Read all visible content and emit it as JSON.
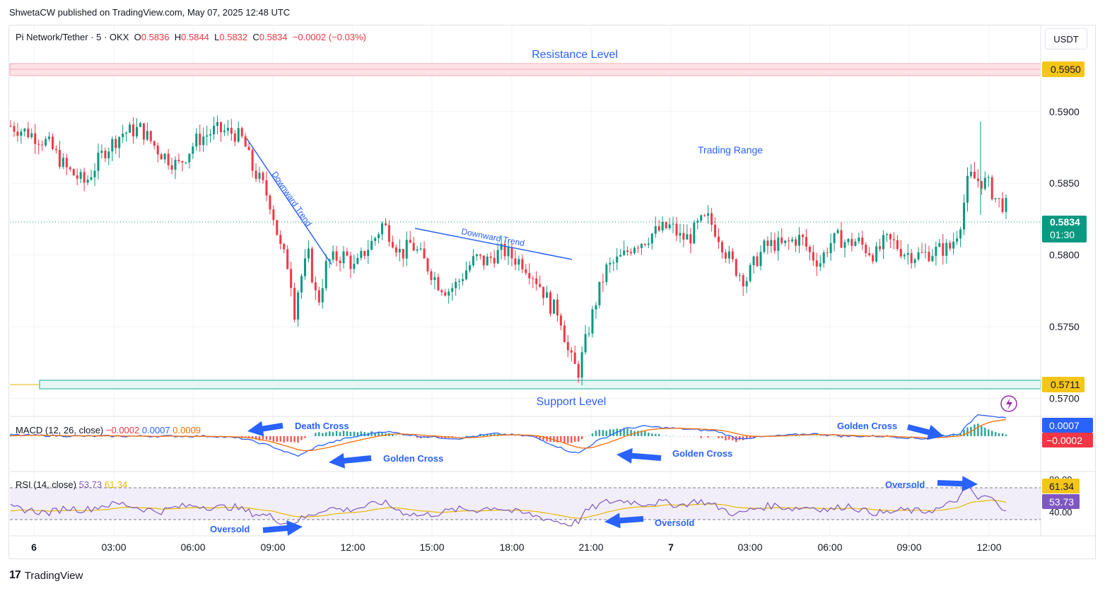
{
  "publisher": "ShwetaCW published on TradingView.com, May 07, 2025 12:48 UTC",
  "symbol": {
    "name": "Pi Network/Tether · 5 · OKX",
    "o_label": "O",
    "o": "0.5836",
    "h_label": "H",
    "h": "0.5844",
    "l_label": "L",
    "l": "0.5832",
    "c_label": "C",
    "c": "0.5834",
    "change": "−0.0002 (−0.03%)"
  },
  "currency": "USDT",
  "annotations": {
    "resistance": "Resistance Level",
    "support": "Support Level",
    "trading_range": "Trading Range",
    "downtrend1": "Downward Trend",
    "downtrend2": "Downward Trend",
    "death_cross": "Death Cross",
    "golden_cross_1": "Golden Cross",
    "golden_cross_2": "Golden Cross",
    "golden_cross_3": "Golden Cross",
    "oversold_1": "Oversold",
    "oversold_2": "Oversold",
    "oversold_3": "Oversold"
  },
  "price_badges": {
    "resistance": "0.5950",
    "last": "0.5834",
    "countdown": "01:30",
    "support": "0.5711",
    "macd_line": "0.0007",
    "macd_hist": "−0.0002",
    "rsi_ma": "61.34",
    "rsi": "53.73"
  },
  "macd_legend": {
    "name": "MACD (12, 26, close)",
    "hist": "−0.0002",
    "macd": "0.0007",
    "signal": "0.0009"
  },
  "rsi_legend": {
    "name": "RSI (14, close)",
    "rsi": "53.73",
    "ma": "61.34"
  },
  "rsi_axis": {
    "top": "80.00",
    "bottom": "40.00"
  },
  "footer": "TradingView",
  "colors": {
    "up": "#089981",
    "down": "#f23645",
    "macd": "#2962ff",
    "signal": "#ff6d00",
    "rsi": "#7e57c2",
    "rsi_ma": "#e8b800",
    "annotation": "#2962ff",
    "resistance": "#f7a8b8",
    "support": "#5ec8b8"
  },
  "chart_data": {
    "type": "candlestick",
    "y_ticks": [
      "0.5700",
      "0.5750",
      "0.5800",
      "0.5850",
      "0.5900"
    ],
    "x_ticks": [
      "6",
      "03:00",
      "06:00",
      "09:00",
      "12:00",
      "15:00",
      "18:00",
      "21:00",
      "7",
      "03:00",
      "06:00",
      "09:00",
      "12:00"
    ],
    "ylim": [
      0.5689,
      0.596
    ],
    "resistance": 0.595,
    "support": 0.5711,
    "last_price": 0.5834,
    "price_path": [
      [
        0,
        0.589
      ],
      [
        2,
        0.5885
      ],
      [
        4,
        0.5878
      ],
      [
        6,
        0.586
      ],
      [
        8,
        0.585
      ],
      [
        10,
        0.5872
      ],
      [
        12,
        0.5885
      ],
      [
        14,
        0.5888
      ],
      [
        16,
        0.5872
      ],
      [
        18,
        0.5862
      ],
      [
        20,
        0.588
      ],
      [
        22,
        0.5887
      ],
      [
        24,
        0.5885
      ],
      [
        25,
        0.588
      ],
      [
        26,
        0.586
      ],
      [
        27,
        0.585
      ],
      [
        28,
        0.5835
      ],
      [
        29,
        0.5805
      ],
      [
        30,
        0.579
      ],
      [
        30.5,
        0.576
      ],
      [
        31,
        0.578
      ],
      [
        32,
        0.58
      ],
      [
        33,
        0.5765
      ],
      [
        34,
        0.5795
      ],
      [
        35,
        0.5798
      ],
      [
        36,
        0.58
      ],
      [
        37,
        0.579
      ],
      [
        38,
        0.5802
      ],
      [
        39,
        0.581
      ],
      [
        40,
        0.5822
      ],
      [
        41,
        0.5812
      ],
      [
        42,
        0.58
      ],
      [
        43,
        0.5808
      ],
      [
        44,
        0.58
      ],
      [
        45,
        0.579
      ],
      [
        46,
        0.578
      ],
      [
        47,
        0.5775
      ],
      [
        48,
        0.578
      ],
      [
        49,
        0.579
      ],
      [
        50,
        0.5798
      ],
      [
        51,
        0.5795
      ],
      [
        52,
        0.58
      ],
      [
        53,
        0.5803
      ],
      [
        54,
        0.5798
      ],
      [
        55,
        0.5795
      ],
      [
        56,
        0.5788
      ],
      [
        57,
        0.5778
      ],
      [
        58,
        0.5765
      ],
      [
        59,
        0.576
      ],
      [
        60,
        0.573
      ],
      [
        61,
        0.5718
      ],
      [
        62,
        0.5745
      ],
      [
        63,
        0.577
      ],
      [
        64,
        0.579
      ],
      [
        65,
        0.5795
      ],
      [
        66,
        0.58
      ],
      [
        67,
        0.5808
      ],
      [
        68,
        0.581
      ],
      [
        69,
        0.5815
      ],
      [
        70,
        0.5818
      ],
      [
        71,
        0.582
      ],
      [
        72,
        0.5812
      ],
      [
        73,
        0.5812
      ],
      [
        74,
        0.5822
      ],
      [
        75,
        0.5825
      ],
      [
        76,
        0.5815
      ],
      [
        77,
        0.58
      ],
      [
        78,
        0.579
      ],
      [
        79,
        0.5782
      ],
      [
        80,
        0.5795
      ],
      [
        81,
        0.5805
      ],
      [
        82,
        0.5808
      ],
      [
        83,
        0.5806
      ],
      [
        84,
        0.581
      ],
      [
        85,
        0.5812
      ],
      [
        86,
        0.58
      ],
      [
        87,
        0.5795
      ],
      [
        88,
        0.5808
      ],
      [
        89,
        0.5812
      ],
      [
        90,
        0.5808
      ],
      [
        91,
        0.581
      ],
      [
        92,
        0.5804
      ],
      [
        93,
        0.58
      ],
      [
        94,
        0.581
      ],
      [
        95,
        0.5808
      ],
      [
        96,
        0.5802
      ],
      [
        97,
        0.58
      ],
      [
        98,
        0.58
      ],
      [
        99,
        0.5802
      ],
      [
        100,
        0.5804
      ],
      [
        101,
        0.5805
      ],
      [
        102,
        0.582
      ],
      [
        103,
        0.5855
      ],
      [
        104,
        0.5852
      ],
      [
        105,
        0.585
      ],
      [
        106,
        0.5838
      ],
      [
        107,
        0.5834
      ]
    ],
    "macd_path": [
      [
        0,
        5e-05
      ],
      [
        8,
        0.0
      ],
      [
        16,
        0.0
      ],
      [
        22,
        0.0
      ],
      [
        25,
        -0.0001
      ],
      [
        28,
        -0.0004
      ],
      [
        30,
        -0.0007
      ],
      [
        31,
        -0.0008
      ],
      [
        33,
        -0.0004
      ],
      [
        36,
        -0.0001
      ],
      [
        40,
        0.0002
      ],
      [
        44,
        0.0
      ],
      [
        48,
        -0.0001
      ],
      [
        52,
        0.0001
      ],
      [
        56,
        0.0
      ],
      [
        58,
        -0.0003
      ],
      [
        60,
        -0.0006
      ],
      [
        61,
        -0.0007
      ],
      [
        63,
        -0.0002
      ],
      [
        66,
        0.0003
      ],
      [
        68,
        0.0004
      ],
      [
        72,
        0.0003
      ],
      [
        76,
        0.0002
      ],
      [
        78,
        -0.0001
      ],
      [
        82,
        0.0
      ],
      [
        86,
        0.0001
      ],
      [
        90,
        0.0
      ],
      [
        94,
        0.0
      ],
      [
        98,
        -0.0001
      ],
      [
        100,
        0.0
      ],
      [
        102,
        0.0001
      ],
      [
        103,
        0.0005
      ],
      [
        104,
        0.0009
      ],
      [
        106,
        0.0008
      ],
      [
        107,
        0.0007
      ]
    ],
    "rsi_path": [
      [
        0,
        55
      ],
      [
        2,
        52
      ],
      [
        4,
        48
      ],
      [
        6,
        55
      ],
      [
        8,
        52
      ],
      [
        10,
        58
      ],
      [
        12,
        60
      ],
      [
        14,
        54
      ],
      [
        16,
        50
      ],
      [
        18,
        56
      ],
      [
        20,
        58
      ],
      [
        22,
        55
      ],
      [
        24,
        56
      ],
      [
        26,
        48
      ],
      [
        28,
        44
      ],
      [
        29,
        38
      ],
      [
        30,
        34
      ],
      [
        31,
        40
      ],
      [
        32,
        44
      ],
      [
        34,
        55
      ],
      [
        36,
        52
      ],
      [
        38,
        56
      ],
      [
        40,
        62
      ],
      [
        42,
        50
      ],
      [
        44,
        45
      ],
      [
        46,
        48
      ],
      [
        48,
        53
      ],
      [
        50,
        52
      ],
      [
        52,
        56
      ],
      [
        54,
        50
      ],
      [
        56,
        46
      ],
      [
        58,
        40
      ],
      [
        60,
        34
      ],
      [
        61,
        38
      ],
      [
        62,
        52
      ],
      [
        64,
        62
      ],
      [
        66,
        64
      ],
      [
        68,
        60
      ],
      [
        70,
        62
      ],
      [
        72,
        58
      ],
      [
        74,
        64
      ],
      [
        76,
        56
      ],
      [
        78,
        46
      ],
      [
        80,
        54
      ],
      [
        82,
        58
      ],
      [
        84,
        54
      ],
      [
        86,
        56
      ],
      [
        88,
        52
      ],
      [
        90,
        58
      ],
      [
        92,
        50
      ],
      [
        94,
        48
      ],
      [
        96,
        52
      ],
      [
        98,
        50
      ],
      [
        100,
        54
      ],
      [
        101,
        60
      ],
      [
        102,
        68
      ],
      [
        103,
        82
      ],
      [
        104,
        65
      ],
      [
        105,
        70
      ],
      [
        106,
        60
      ],
      [
        107,
        54
      ]
    ]
  }
}
